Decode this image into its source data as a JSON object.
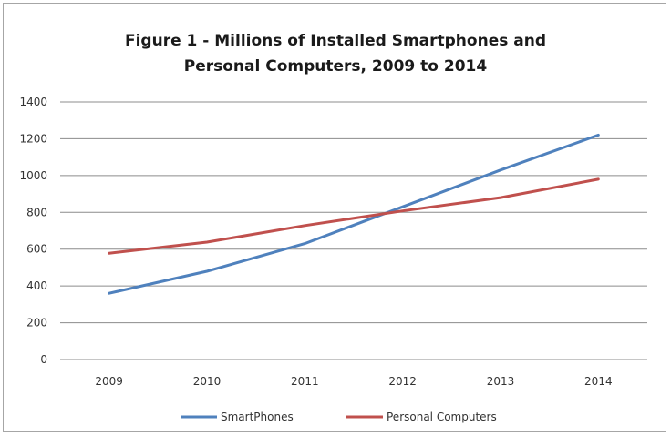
{
  "chart_data": {
    "type": "line",
    "title_lines": [
      "Figure 1 - Millions of Installed Smartphones  and",
      "Personal Computers, 2009 to 2014"
    ],
    "xlabel": "",
    "ylabel": "",
    "categories": [
      "2009",
      "2010",
      "2011",
      "2012",
      "2013",
      "2014"
    ],
    "ylim": [
      0,
      1400
    ],
    "yticks": [
      0,
      200,
      400,
      600,
      800,
      1000,
      1200,
      1400
    ],
    "grid": true,
    "legend_position": "bottom",
    "series": [
      {
        "name": "SmartPhones",
        "color": "#4f81bd",
        "values": [
          360,
          480,
          630,
          830,
          1030,
          1220
        ]
      },
      {
        "name": "Personal Computers",
        "color": "#c0504d",
        "values": [
          578,
          638,
          728,
          808,
          880,
          980
        ]
      }
    ]
  }
}
